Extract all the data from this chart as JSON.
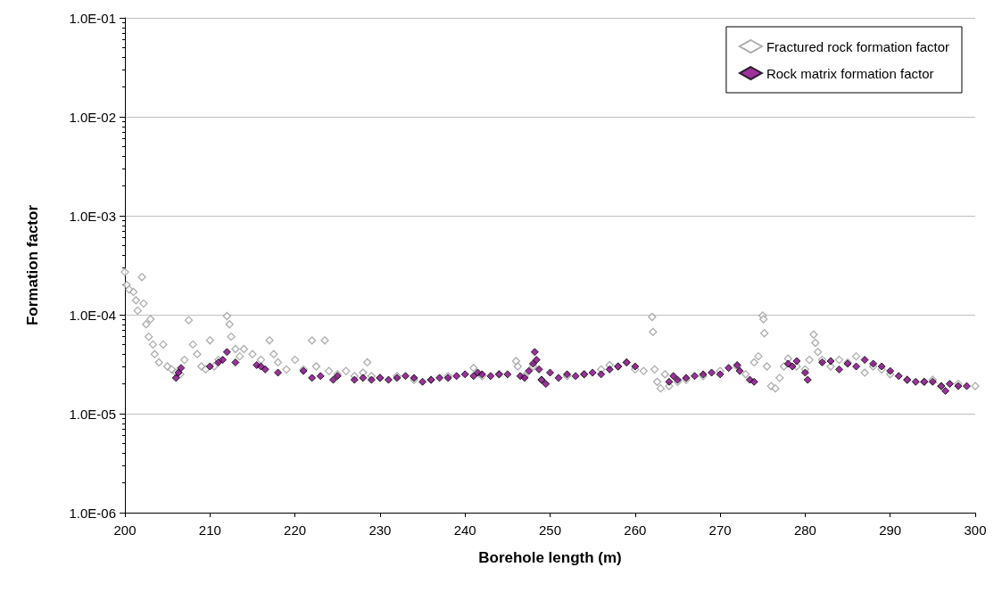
{
  "chart_data": {
    "type": "scatter",
    "xlabel": "Borehole length (m)",
    "ylabel": "Formation factor",
    "xlim": [
      200,
      300
    ],
    "xticks": [
      200,
      210,
      220,
      230,
      240,
      250,
      260,
      270,
      280,
      290,
      300
    ],
    "ylim": [
      1e-06,
      0.1
    ],
    "yticks": [
      {
        "value": 1e-06,
        "label": "1.0E-06"
      },
      {
        "value": 1e-05,
        "label": "1.0E-05"
      },
      {
        "value": 0.0001,
        "label": "1.0E-04"
      },
      {
        "value": 0.001,
        "label": "1.0E-03"
      },
      {
        "value": 0.01,
        "label": "1.0E-02"
      },
      {
        "value": 0.1,
        "label": "1.0E-01"
      }
    ],
    "log": "y",
    "grid": "y",
    "legend": "top right",
    "marker": "diamond",
    "series": [
      {
        "name": "Fractured rock formation factor",
        "color": "#999999",
        "x": [
          200,
          200.2,
          200.5,
          201,
          201.3,
          201.5,
          202,
          202.2,
          202.5,
          202.8,
          203,
          203.3,
          203.5,
          204,
          204.5,
          205,
          205.5,
          206,
          206.5,
          207,
          207.5,
          208,
          208.5,
          209,
          209.5,
          210,
          210.5,
          211,
          212,
          212.3,
          212.5,
          213,
          213.5,
          214,
          215,
          216,
          217,
          217.5,
          218,
          219,
          220,
          221,
          222,
          222.5,
          223.5,
          224,
          225,
          226,
          227,
          228,
          228.5,
          229,
          230,
          232,
          234,
          236,
          238,
          240,
          241,
          242,
          244,
          246,
          246.2,
          247,
          248,
          249,
          250,
          252,
          254,
          256,
          257,
          258,
          259,
          260,
          261,
          262,
          262.1,
          262.3,
          262.6,
          263,
          263.5,
          264,
          265,
          266,
          268,
          270,
          272,
          273,
          274,
          274.5,
          275,
          275.1,
          275.2,
          275.5,
          276,
          276.5,
          277,
          277.5,
          278,
          279,
          280,
          280.5,
          281,
          281.2,
          281.5,
          282,
          283,
          284,
          285,
          286,
          287,
          288,
          289,
          290,
          292,
          294,
          295,
          296,
          298,
          300
        ],
        "values": [
          0.00027,
          0.0002,
          0.00018,
          0.00017,
          0.00014,
          0.00011,
          0.00024,
          0.00013,
          8e-05,
          6e-05,
          9e-05,
          5e-05,
          4e-05,
          3.3e-05,
          5e-05,
          3e-05,
          2.8e-05,
          2.6e-05,
          2.5e-05,
          3.5e-05,
          8.8e-05,
          5e-05,
          4e-05,
          3e-05,
          2.8e-05,
          5.5e-05,
          3e-05,
          3.5e-05,
          9.7e-05,
          8e-05,
          6e-05,
          4.5e-05,
          3.8e-05,
          4.5e-05,
          4e-05,
          3.5e-05,
          5.5e-05,
          4e-05,
          3.3e-05,
          2.8e-05,
          3.5e-05,
          2.8e-05,
          5.5e-05,
          3e-05,
          5.5e-05,
          2.7e-05,
          2.5e-05,
          2.7e-05,
          2.4e-05,
          2.6e-05,
          3.3e-05,
          2.4e-05,
          2.3e-05,
          2.4e-05,
          2.2e-05,
          2.2e-05,
          2.4e-05,
          null,
          2.9e-05,
          2.4e-05,
          2.5e-05,
          3.4e-05,
          3e-05,
          2.4e-05,
          3e-05,
          2.2e-05,
          null,
          2.4e-05,
          2.5e-05,
          2.8e-05,
          3.1e-05,
          3e-05,
          3.3e-05,
          2.8e-05,
          2.7e-05,
          9.5e-05,
          6.7e-05,
          2.8e-05,
          2.1e-05,
          1.8e-05,
          2.5e-05,
          1.9e-05,
          2.1e-05,
          2.2e-05,
          2.4e-05,
          2.7e-05,
          3e-05,
          2.5e-05,
          3.3e-05,
          3.8e-05,
          9.8e-05,
          9e-05,
          6.5e-05,
          3e-05,
          1.9e-05,
          1.8e-05,
          2.3e-05,
          3e-05,
          3.6e-05,
          3e-05,
          2.8e-05,
          3.5e-05,
          6.3e-05,
          5.2e-05,
          4.2e-05,
          3.5e-05,
          3e-05,
          3.5e-05,
          3.3e-05,
          3.8e-05,
          2.6e-05,
          3e-05,
          2.8e-05,
          2.5e-05,
          2.2e-05,
          2.1e-05,
          2.2e-05,
          1.9e-05,
          2e-05,
          1.9e-05
        ]
      },
      {
        "name": "Rock matrix formation factor",
        "color": "#800080",
        "x": [
          206,
          206.3,
          206.6,
          210,
          211,
          211.5,
          212,
          213,
          215.5,
          216,
          216.5,
          218,
          221,
          222,
          223,
          224.5,
          225,
          227,
          228,
          229,
          230,
          231,
          232,
          233,
          234,
          235,
          236,
          237,
          238,
          239,
          240,
          241,
          241.5,
          242,
          243,
          244,
          245,
          246.5,
          247,
          247.5,
          248,
          248.2,
          248.4,
          248.7,
          249,
          249.5,
          250,
          251,
          252,
          253,
          254,
          255,
          256,
          257,
          258,
          259,
          260,
          264,
          264.5,
          265,
          266,
          267,
          268,
          269,
          270,
          271,
          272,
          272.3,
          273.5,
          274,
          278,
          278.5,
          279,
          280,
          280.3,
          282,
          283,
          284,
          285,
          286,
          287,
          288,
          289,
          290,
          291,
          292,
          293,
          294,
          295,
          296,
          296.5,
          297,
          298,
          299
        ],
        "values": [
          2.3e-05,
          2.6e-05,
          2.9e-05,
          3e-05,
          3.3e-05,
          3.5e-05,
          4.2e-05,
          3.3e-05,
          3.1e-05,
          3e-05,
          2.8e-05,
          2.6e-05,
          2.7e-05,
          2.3e-05,
          2.4e-05,
          2.2e-05,
          2.4e-05,
          2.2e-05,
          2.3e-05,
          2.2e-05,
          2.3e-05,
          2.2e-05,
          2.3e-05,
          2.4e-05,
          2.3e-05,
          2.1e-05,
          2.2e-05,
          2.3e-05,
          2.3e-05,
          2.4e-05,
          2.5e-05,
          2.4e-05,
          2.6e-05,
          2.5e-05,
          2.4e-05,
          2.5e-05,
          2.5e-05,
          2.4e-05,
          2.3e-05,
          2.7e-05,
          3.2e-05,
          4.2e-05,
          3.5e-05,
          2.8e-05,
          2.2e-05,
          2e-05,
          2.6e-05,
          2.3e-05,
          2.5e-05,
          2.4e-05,
          2.5e-05,
          2.6e-05,
          2.5e-05,
          2.8e-05,
          3e-05,
          3.3e-05,
          3e-05,
          2.1e-05,
          2.4e-05,
          2.2e-05,
          2.3e-05,
          2.4e-05,
          2.5e-05,
          2.6e-05,
          2.5e-05,
          2.9e-05,
          3.1e-05,
          2.7e-05,
          2.2e-05,
          2.1e-05,
          3.2e-05,
          3e-05,
          3.4e-05,
          2.6e-05,
          2.2e-05,
          3.3e-05,
          3.4e-05,
          2.8e-05,
          3.2e-05,
          3e-05,
          3.5e-05,
          3.2e-05,
          3e-05,
          2.7e-05,
          2.4e-05,
          2.2e-05,
          2.1e-05,
          2.1e-05,
          2.1e-05,
          1.9e-05,
          1.7e-05,
          2e-05,
          1.9e-05,
          1.9e-05
        ]
      }
    ]
  }
}
